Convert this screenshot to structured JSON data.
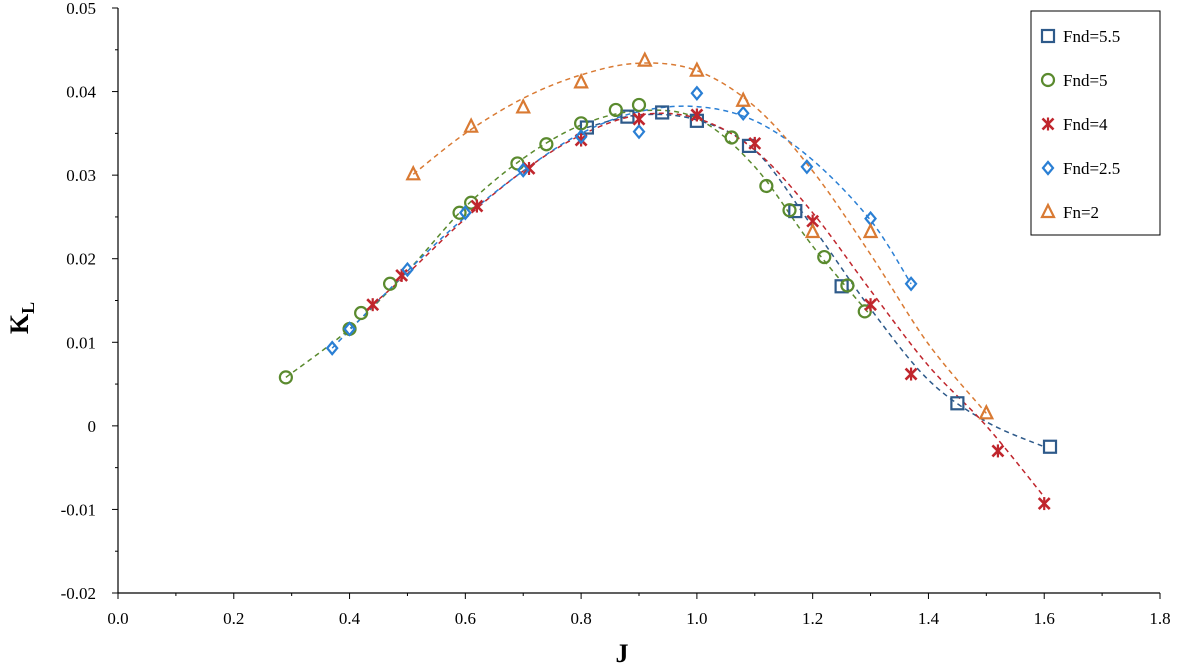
{
  "chart_data": {
    "type": "scatter",
    "xlabel": "J",
    "ylabel_main": "K",
    "ylabel_sub": "L",
    "xlim": [
      0.0,
      1.8
    ],
    "ylim": [
      -0.02,
      0.05
    ],
    "grid": false,
    "legend_position": "top-right",
    "x_ticks": [
      0.0,
      0.2,
      0.4,
      0.6,
      0.8,
      1.0,
      1.2,
      1.4,
      1.6,
      1.8
    ],
    "x_tick_labels": [
      "0.0",
      "0.2",
      "0.4",
      "0.6",
      "0.8",
      "1.0",
      "1.2",
      "1.4",
      "1.6",
      "1.8"
    ],
    "y_ticks": [
      -0.02,
      -0.01,
      0,
      0.01,
      0.02,
      0.03,
      0.04,
      0.05
    ],
    "y_tick_labels": [
      "-0.02",
      "-0.01",
      "0",
      "0.01",
      "0.02",
      "0.03",
      "0.04",
      "0.05"
    ],
    "series": [
      {
        "name": "Fnd=5.5",
        "marker": "square",
        "color": "#2e5a8a",
        "points": [
          [
            0.81,
            0.0357
          ],
          [
            0.88,
            0.037
          ],
          [
            0.94,
            0.0375
          ],
          [
            1.0,
            0.0365
          ],
          [
            1.09,
            0.0335
          ],
          [
            1.17,
            0.0257
          ],
          [
            1.25,
            0.0167
          ],
          [
            1.45,
            0.0027
          ],
          [
            1.61,
            -0.0025
          ]
        ],
        "trend": [
          [
            0.81,
            0.0357
          ],
          [
            0.9,
            0.0372
          ],
          [
            1.0,
            0.0366
          ],
          [
            1.1,
            0.033
          ],
          [
            1.2,
            0.0238
          ],
          [
            1.3,
            0.014
          ],
          [
            1.4,
            0.0055
          ],
          [
            1.5,
            0.0005
          ],
          [
            1.6,
            -0.0025
          ]
        ]
      },
      {
        "name": "Fnd=5",
        "marker": "circle",
        "color": "#5a8a2e",
        "points": [
          [
            0.29,
            0.0058
          ],
          [
            0.4,
            0.0116
          ],
          [
            0.42,
            0.0135
          ],
          [
            0.47,
            0.017
          ],
          [
            0.59,
            0.0255
          ],
          [
            0.61,
            0.0267
          ],
          [
            0.69,
            0.0314
          ],
          [
            0.74,
            0.0337
          ],
          [
            0.8,
            0.0362
          ],
          [
            0.86,
            0.0378
          ],
          [
            0.9,
            0.0384
          ],
          [
            1.06,
            0.0345
          ],
          [
            1.12,
            0.0287
          ],
          [
            1.16,
            0.0258
          ],
          [
            1.22,
            0.0202
          ],
          [
            1.26,
            0.0168
          ],
          [
            1.29,
            0.0137
          ]
        ],
        "trend": [
          [
            0.29,
            0.0058
          ],
          [
            0.4,
            0.0116
          ],
          [
            0.5,
            0.0185
          ],
          [
            0.6,
            0.0262
          ],
          [
            0.7,
            0.032
          ],
          [
            0.8,
            0.036
          ],
          [
            0.9,
            0.0377
          ],
          [
            1.0,
            0.0368
          ],
          [
            1.1,
            0.031
          ],
          [
            1.2,
            0.0215
          ],
          [
            1.3,
            0.0132
          ]
        ]
      },
      {
        "name": "Fnd=4",
        "marker": "star",
        "color": "#c0262d",
        "points": [
          [
            0.44,
            0.0145
          ],
          [
            0.49,
            0.018
          ],
          [
            0.62,
            0.0263
          ],
          [
            0.71,
            0.0308
          ],
          [
            0.8,
            0.0342
          ],
          [
            0.9,
            0.0367
          ],
          [
            1.0,
            0.0372
          ],
          [
            1.1,
            0.0338
          ],
          [
            1.2,
            0.0245
          ],
          [
            1.3,
            0.0145
          ],
          [
            1.37,
            0.0062
          ],
          [
            1.52,
            -0.003
          ],
          [
            1.6,
            -0.0093
          ]
        ],
        "trend": [
          [
            0.44,
            0.0145
          ],
          [
            0.5,
            0.0182
          ],
          [
            0.6,
            0.0248
          ],
          [
            0.7,
            0.0305
          ],
          [
            0.8,
            0.0348
          ],
          [
            0.9,
            0.0372
          ],
          [
            1.0,
            0.0368
          ],
          [
            1.1,
            0.033
          ],
          [
            1.2,
            0.0255
          ],
          [
            1.3,
            0.0162
          ],
          [
            1.4,
            0.0072
          ],
          [
            1.5,
            0.0
          ],
          [
            1.6,
            -0.0085
          ]
        ]
      },
      {
        "name": "Fnd=2.5",
        "marker": "diamond",
        "color": "#2a7fd4",
        "points": [
          [
            0.37,
            0.0093
          ],
          [
            0.4,
            0.0116
          ],
          [
            0.5,
            0.0187
          ],
          [
            0.6,
            0.0255
          ],
          [
            0.7,
            0.0306
          ],
          [
            0.8,
            0.0346
          ],
          [
            0.9,
            0.0352
          ],
          [
            1.0,
            0.0398
          ],
          [
            1.08,
            0.0374
          ],
          [
            1.19,
            0.031
          ],
          [
            1.3,
            0.0248
          ],
          [
            1.37,
            0.017
          ]
        ],
        "trend": [
          [
            0.37,
            0.0093
          ],
          [
            0.5,
            0.0185
          ],
          [
            0.6,
            0.025
          ],
          [
            0.7,
            0.0305
          ],
          [
            0.8,
            0.035
          ],
          [
            0.9,
            0.0376
          ],
          [
            1.0,
            0.0382
          ],
          [
            1.1,
            0.0365
          ],
          [
            1.2,
            0.0318
          ],
          [
            1.3,
            0.0246
          ],
          [
            1.37,
            0.017
          ]
        ]
      },
      {
        "name": "Fn=2",
        "marker": "triangle",
        "color": "#d97a33",
        "points": [
          [
            0.51,
            0.0301
          ],
          [
            0.61,
            0.0358
          ],
          [
            0.7,
            0.0381
          ],
          [
            0.8,
            0.0411
          ],
          [
            0.91,
            0.0437
          ],
          [
            1.0,
            0.0425
          ],
          [
            1.08,
            0.0389
          ],
          [
            1.2,
            0.0232
          ],
          [
            1.3,
            0.0232
          ],
          [
            1.5,
            0.0015
          ]
        ],
        "trend": [
          [
            0.51,
            0.0301
          ],
          [
            0.6,
            0.035
          ],
          [
            0.7,
            0.0392
          ],
          [
            0.8,
            0.042
          ],
          [
            0.9,
            0.0434
          ],
          [
            1.0,
            0.0425
          ],
          [
            1.1,
            0.0382
          ],
          [
            1.2,
            0.0305
          ],
          [
            1.3,
            0.0205
          ],
          [
            1.4,
            0.0098
          ],
          [
            1.5,
            0.0015
          ]
        ]
      }
    ]
  }
}
